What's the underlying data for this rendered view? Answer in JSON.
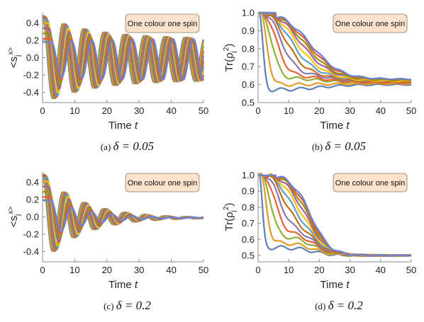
{
  "palette": [
    "#5e81b5",
    "#e19c24",
    "#8fb032",
    "#eb6235",
    "#8778b3",
    "#c56e1a",
    "#5d9ec7",
    "#ffbf00",
    "#a5609d",
    "#929600",
    "#e95536",
    "#6685d9"
  ],
  "chart_data": [
    {
      "id": "a",
      "type": "line",
      "caption": "(a) δ = 0.05",
      "legend_label": "One colour one spin",
      "legend_placement": "top-right",
      "ylabel": "<s_j^x>",
      "xlabel": "Time t",
      "xlim": [
        0,
        50
      ],
      "ylim": [
        -0.52,
        0.52
      ],
      "x_ticks": [
        0,
        10,
        20,
        30,
        40,
        50
      ],
      "y_ticks": [
        -0.4,
        -0.2,
        0.0,
        0.2,
        0.4
      ],
      "y_tick_labels": [
        "-0.4",
        "-0.2",
        "0.0",
        "0.2",
        "0.4"
      ],
      "model": "oscillation",
      "series": [
        {
          "phase_delay": 0.0,
          "amp_start": 0.5,
          "amp_end": 0.24,
          "offset": -0.02
        },
        {
          "phase_delay": 0.25,
          "amp_start": 0.5,
          "amp_end": 0.24,
          "offset": -0.02
        },
        {
          "phase_delay": 0.5,
          "amp_start": 0.5,
          "amp_end": 0.24,
          "offset": -0.02
        },
        {
          "phase_delay": 0.75,
          "amp_start": 0.5,
          "amp_end": 0.24,
          "offset": -0.02
        },
        {
          "phase_delay": 1.0,
          "amp_start": 0.49,
          "amp_end": 0.24,
          "offset": -0.02
        },
        {
          "phase_delay": 1.25,
          "amp_start": 0.48,
          "amp_end": 0.24,
          "offset": -0.02
        },
        {
          "phase_delay": 1.5,
          "amp_start": 0.46,
          "amp_end": 0.24,
          "offset": -0.02
        },
        {
          "phase_delay": 1.75,
          "amp_start": 0.42,
          "amp_end": 0.24,
          "offset": -0.02
        },
        {
          "phase_delay": 2.0,
          "amp_start": 0.36,
          "amp_end": 0.24,
          "offset": -0.02
        },
        {
          "phase_delay": 2.25,
          "amp_start": 0.3,
          "amp_end": 0.24,
          "offset": -0.02
        },
        {
          "phase_delay": 2.5,
          "amp_start": 0.24,
          "amp_end": 0.24,
          "offset": -0.02
        },
        {
          "phase_delay": 2.75,
          "amp_start": 0.2,
          "amp_end": 0.24,
          "offset": -0.02
        }
      ],
      "period": 6.3,
      "decay_time": 15
    },
    {
      "id": "b",
      "type": "line",
      "caption": "(b) δ = 0.05",
      "legend_label": "One colour one spin",
      "legend_placement": "top-right",
      "ylabel": "Tr(ρ_j^2)",
      "xlabel": "Time t",
      "xlim": [
        0,
        50
      ],
      "ylim": [
        0.5,
        1.0
      ],
      "x_ticks": [
        0,
        10,
        20,
        30,
        40,
        50
      ],
      "y_ticks": [
        0.5,
        0.6,
        0.7,
        0.8,
        0.9,
        1.0
      ],
      "y_tick_labels": [
        "0.5",
        "0.6",
        "0.7",
        "0.8",
        "0.9",
        "1.0"
      ],
      "model": "purity",
      "series": [
        {
          "t_start": 0.3,
          "floor": 0.57,
          "tau": 1.2,
          "end": 0.6
        },
        {
          "t_start": 0.8,
          "floor": 0.6,
          "tau": 2.0,
          "end": 0.605
        },
        {
          "t_start": 1.3,
          "floor": 0.64,
          "tau": 3.0,
          "end": 0.61
        },
        {
          "t_start": 1.8,
          "floor": 0.66,
          "tau": 4.0,
          "end": 0.61
        },
        {
          "t_start": 2.3,
          "floor": 0.68,
          "tau": 5.0,
          "end": 0.615
        },
        {
          "t_start": 2.8,
          "floor": 0.7,
          "tau": 6.0,
          "end": 0.615
        },
        {
          "t_start": 3.3,
          "floor": 0.72,
          "tau": 7.0,
          "end": 0.62
        },
        {
          "t_start": 3.8,
          "floor": 0.74,
          "tau": 8.0,
          "end": 0.62
        },
        {
          "t_start": 4.3,
          "floor": 0.76,
          "tau": 9.0,
          "end": 0.625
        },
        {
          "t_start": 4.8,
          "floor": 0.78,
          "tau": 10.0,
          "end": 0.625
        },
        {
          "t_start": 5.3,
          "floor": 0.8,
          "tau": 11.0,
          "end": 0.63
        },
        {
          "t_start": 5.8,
          "floor": 0.82,
          "tau": 12.0,
          "end": 0.63
        }
      ],
      "ripple_amp": 0.012,
      "ripple_period": 6.3
    },
    {
      "id": "c",
      "type": "line",
      "caption": "(c) δ = 0.2",
      "legend_label": "One colour one spin",
      "legend_placement": "top-right",
      "ylabel": "<s_j^x>",
      "xlabel": "Time t",
      "xlim": [
        0,
        50
      ],
      "ylim": [
        -0.52,
        0.52
      ],
      "x_ticks": [
        0,
        10,
        20,
        30,
        40,
        50
      ],
      "y_ticks": [
        -0.4,
        -0.2,
        0.0,
        0.2,
        0.4
      ],
      "y_tick_labels": [
        "-0.4",
        "-0.2",
        "0.0",
        "0.2",
        "0.4"
      ],
      "model": "oscillation",
      "series": [
        {
          "phase_delay": 0.0,
          "amp_start": 0.5,
          "amp_end": 0.0,
          "offset": -0.01
        },
        {
          "phase_delay": 0.25,
          "amp_start": 0.5,
          "amp_end": 0.0,
          "offset": -0.01
        },
        {
          "phase_delay": 0.5,
          "amp_start": 0.5,
          "amp_end": 0.0,
          "offset": -0.01
        },
        {
          "phase_delay": 0.75,
          "amp_start": 0.5,
          "amp_end": 0.0,
          "offset": -0.01
        },
        {
          "phase_delay": 1.0,
          "amp_start": 0.49,
          "amp_end": 0.0,
          "offset": -0.01
        },
        {
          "phase_delay": 1.25,
          "amp_start": 0.48,
          "amp_end": 0.0,
          "offset": -0.01
        },
        {
          "phase_delay": 1.5,
          "amp_start": 0.46,
          "amp_end": 0.0,
          "offset": -0.01
        },
        {
          "phase_delay": 1.75,
          "amp_start": 0.42,
          "amp_end": 0.0,
          "offset": -0.01
        },
        {
          "phase_delay": 2.0,
          "amp_start": 0.36,
          "amp_end": 0.0,
          "offset": -0.01
        },
        {
          "phase_delay": 2.25,
          "amp_start": 0.3,
          "amp_end": 0.0,
          "offset": -0.01
        },
        {
          "phase_delay": 2.5,
          "amp_start": 0.24,
          "amp_end": 0.0,
          "offset": -0.01
        },
        {
          "phase_delay": 2.75,
          "amp_start": 0.2,
          "amp_end": 0.0,
          "offset": -0.01
        }
      ],
      "period": 6.3,
      "decay_time": 12
    },
    {
      "id": "d",
      "type": "line",
      "caption": "(d) δ = 0.2",
      "legend_label": "One colour one spin",
      "legend_placement": "top-right",
      "ylabel": "Tr(ρ_j^2)",
      "xlabel": "Time t",
      "xlim": [
        0,
        50
      ],
      "ylim": [
        0.46,
        1.02
      ],
      "x_ticks": [
        0,
        10,
        20,
        30,
        40,
        50
      ],
      "y_ticks": [
        0.5,
        0.6,
        0.7,
        0.8,
        0.9,
        1.0
      ],
      "y_tick_labels": [
        "0.5",
        "0.6",
        "0.7",
        "0.8",
        "0.9",
        "1.0"
      ],
      "model": "purity",
      "series": [
        {
          "t_start": 0.3,
          "floor": 0.55,
          "tau": 1.0,
          "end": 0.5
        },
        {
          "t_start": 0.8,
          "floor": 0.58,
          "tau": 1.8,
          "end": 0.5
        },
        {
          "t_start": 1.3,
          "floor": 0.62,
          "tau": 2.6,
          "end": 0.5
        },
        {
          "t_start": 1.8,
          "floor": 0.65,
          "tau": 3.4,
          "end": 0.5
        },
        {
          "t_start": 2.3,
          "floor": 0.68,
          "tau": 4.2,
          "end": 0.5
        },
        {
          "t_start": 2.8,
          "floor": 0.71,
          "tau": 5.0,
          "end": 0.5
        },
        {
          "t_start": 3.3,
          "floor": 0.74,
          "tau": 5.8,
          "end": 0.5
        },
        {
          "t_start": 3.8,
          "floor": 0.77,
          "tau": 6.6,
          "end": 0.5
        },
        {
          "t_start": 4.3,
          "floor": 0.8,
          "tau": 7.4,
          "end": 0.5
        },
        {
          "t_start": 4.8,
          "floor": 0.83,
          "tau": 8.2,
          "end": 0.5
        },
        {
          "t_start": 5.3,
          "floor": 0.86,
          "tau": 9.0,
          "end": 0.5
        },
        {
          "t_start": 5.8,
          "floor": 0.89,
          "tau": 9.8,
          "end": 0.5
        }
      ],
      "ripple_amp": 0.015,
      "ripple_period": 6.3,
      "late_decay": true
    }
  ]
}
